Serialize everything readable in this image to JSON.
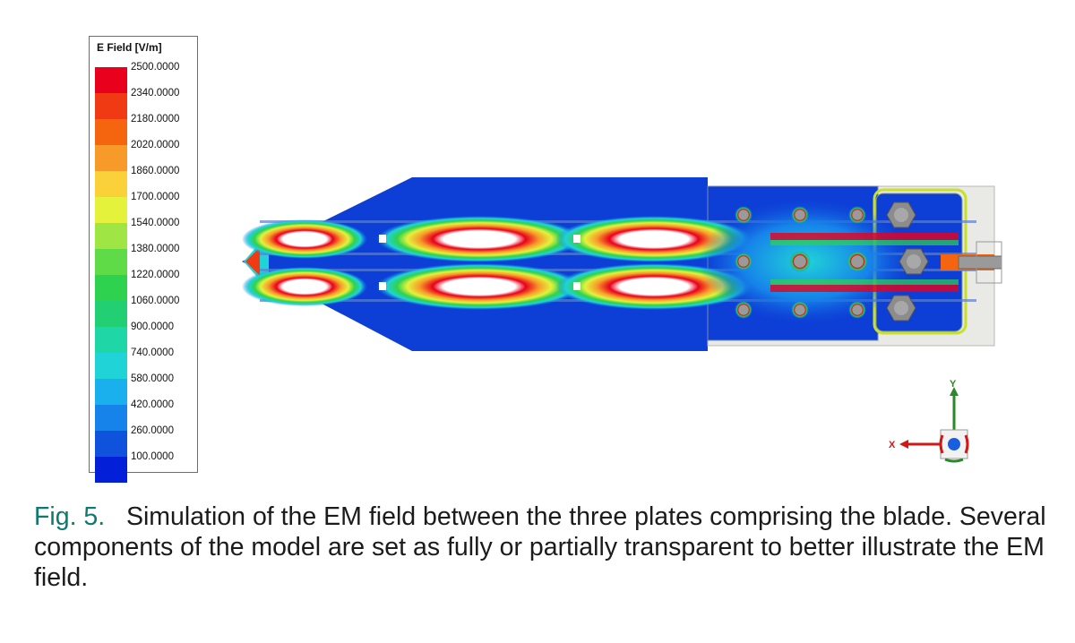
{
  "legend": {
    "title": "E Field [V/m]",
    "levels": [
      {
        "label": "2500.0000",
        "color": "#e8001c"
      },
      {
        "label": "2340.0000",
        "color": "#f03a14"
      },
      {
        "label": "2180.0000",
        "color": "#f5650f"
      },
      {
        "label": "2020.0000",
        "color": "#f89a2a"
      },
      {
        "label": "1860.0000",
        "color": "#fbd13a"
      },
      {
        "label": "1700.0000",
        "color": "#e4f23c"
      },
      {
        "label": "1540.0000",
        "color": "#9fe645"
      },
      {
        "label": "1380.0000",
        "color": "#5fdb48"
      },
      {
        "label": "1220.0000",
        "color": "#2fd24e"
      },
      {
        "label": "1060.0000",
        "color": "#22cf72"
      },
      {
        "label": "900.0000",
        "color": "#1fd6a6"
      },
      {
        "label": "740.0000",
        "color": "#20d3d7"
      },
      {
        "label": "580.0000",
        "color": "#1ab0ee"
      },
      {
        "label": "420.0000",
        "color": "#1683ea"
      },
      {
        "label": "260.0000",
        "color": "#0f52dc"
      },
      {
        "label": "100.0000",
        "color": "#0320d8"
      }
    ]
  },
  "axis_triad": {
    "y_label": "Y",
    "x_label": "X"
  },
  "caption": {
    "fig_label": "Fig. 5.",
    "text": "Simulation of the EM field between the three plates comprising the blade. Several components of the model are set as fully or partially transparent to better illustrate the EM field."
  }
}
